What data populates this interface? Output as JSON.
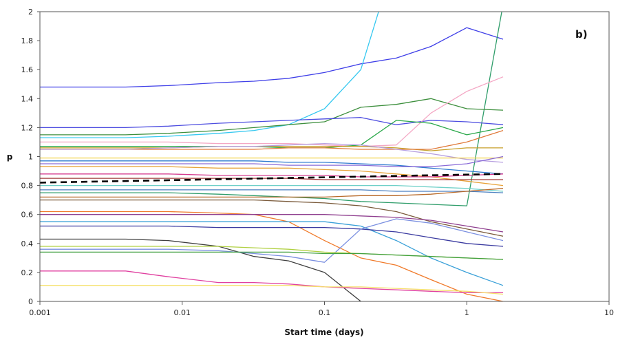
{
  "chart_data": {
    "type": "line",
    "title": "",
    "xlabel": "Start time (days)",
    "ylabel": "p",
    "panel_label": "b)",
    "x_scale": "log",
    "xlim": [
      0.001,
      10
    ],
    "ylim": [
      0,
      2
    ],
    "x_ticks": [
      "0.001",
      "0.01",
      "0.1",
      "1",
      "10"
    ],
    "y_ticks": [
      "0",
      "0.2",
      "0.4",
      "0.6",
      "0.8",
      "1",
      "1.2",
      "1.4",
      "1.6",
      "1.8",
      "2"
    ],
    "grid": false,
    "legend": "none",
    "x": [
      0.001,
      0.002,
      0.004,
      0.008,
      0.018,
      0.032,
      0.056,
      0.1,
      0.18,
      0.32,
      0.56,
      1.0,
      1.8
    ],
    "series": [
      {
        "color": "#3f3fe8",
        "values": [
          1.48,
          1.48,
          1.48,
          1.49,
          1.51,
          1.52,
          1.54,
          1.58,
          1.64,
          1.68,
          1.76,
          1.89,
          1.81
        ]
      },
      {
        "color": "#35c8f0",
        "values": [
          1.13,
          1.13,
          1.13,
          1.14,
          1.16,
          1.18,
          1.22,
          1.33,
          1.6,
          2.4,
          null,
          null,
          null
        ]
      },
      {
        "color": "#2f9d6a",
        "values": [
          0.75,
          0.75,
          0.75,
          0.75,
          0.74,
          0.73,
          0.72,
          0.71,
          0.69,
          0.68,
          0.67,
          0.66,
          2.05
        ]
      },
      {
        "color": "#3d8f3d",
        "values": [
          1.15,
          1.15,
          1.15,
          1.16,
          1.18,
          1.2,
          1.22,
          1.24,
          1.34,
          1.36,
          1.4,
          1.33,
          1.32
        ]
      },
      {
        "color": "#4d4de0",
        "values": [
          1.2,
          1.2,
          1.2,
          1.21,
          1.23,
          1.24,
          1.25,
          1.26,
          1.27,
          1.22,
          1.25,
          1.24,
          1.22
        ]
      },
      {
        "color": "#f4a7c4",
        "values": [
          1.1,
          1.1,
          1.1,
          1.1,
          1.09,
          1.09,
          1.09,
          1.08,
          1.07,
          1.08,
          1.3,
          1.45,
          1.55
        ]
      },
      {
        "color": "#2aa84a",
        "values": [
          1.07,
          1.07,
          1.07,
          1.07,
          1.07,
          1.07,
          1.06,
          1.06,
          1.08,
          1.25,
          1.23,
          1.15,
          1.2
        ]
      },
      {
        "color": "#c79f2a",
        "values": [
          1.06,
          1.06,
          1.06,
          1.06,
          1.07,
          1.07,
          1.07,
          1.07,
          1.07,
          1.06,
          1.04,
          1.06,
          1.06
        ]
      },
      {
        "color": "#e07a3a",
        "values": [
          1.05,
          1.05,
          1.05,
          1.05,
          1.05,
          1.05,
          1.06,
          1.06,
          1.05,
          1.05,
          1.05,
          1.1,
          1.18
        ]
      },
      {
        "color": "#b8a0e0",
        "values": [
          1.05,
          1.05,
          1.05,
          1.06,
          1.07,
          1.07,
          1.08,
          1.09,
          1.08,
          1.05,
          1.02,
          0.98,
          0.96
        ]
      },
      {
        "color": "#f2d24a",
        "values": [
          0.99,
          0.99,
          0.99,
          0.99,
          0.99,
          0.99,
          0.99,
          0.99,
          0.99,
          0.99,
          0.99,
          0.99,
          0.99
        ]
      },
      {
        "color": "#2f7bd0",
        "values": [
          0.97,
          0.97,
          0.97,
          0.97,
          0.97,
          0.97,
          0.96,
          0.96,
          0.95,
          0.94,
          0.92,
          0.9,
          0.88
        ]
      },
      {
        "color": "#8a6bd8",
        "values": [
          0.95,
          0.95,
          0.95,
          0.95,
          0.95,
          0.95,
          0.94,
          0.94,
          0.94,
          0.93,
          0.93,
          0.95,
          1.0
        ]
      },
      {
        "color": "#e8a33a",
        "values": [
          0.93,
          0.93,
          0.93,
          0.93,
          0.92,
          0.92,
          0.92,
          0.91,
          0.9,
          0.88,
          0.86,
          0.83,
          0.8
        ]
      },
      {
        "color": "#d43b8f",
        "values": [
          0.88,
          0.88,
          0.88,
          0.88,
          0.87,
          0.87,
          0.87,
          0.87,
          0.86,
          0.86,
          0.86,
          0.87,
          0.88
        ]
      },
      {
        "color": "#a23b3b",
        "values": [
          0.85,
          0.85,
          0.85,
          0.85,
          0.85,
          0.85,
          0.85,
          0.84,
          0.84,
          0.84,
          0.84,
          0.84,
          0.84
        ]
      },
      {
        "color": "#6fd0c8",
        "values": [
          0.8,
          0.8,
          0.8,
          0.8,
          0.8,
          0.8,
          0.8,
          0.8,
          0.8,
          0.8,
          0.79,
          0.78,
          0.76
        ]
      },
      {
        "color": "#4a7fc0",
        "values": [
          0.77,
          0.77,
          0.77,
          0.77,
          0.77,
          0.77,
          0.77,
          0.77,
          0.77,
          0.76,
          0.76,
          0.76,
          0.75
        ]
      },
      {
        "color": "#b86a2a",
        "values": [
          0.72,
          0.72,
          0.72,
          0.72,
          0.72,
          0.72,
          0.72,
          0.72,
          0.73,
          0.73,
          0.74,
          0.76,
          0.78
        ]
      },
      {
        "color": "#7a5a3a",
        "values": [
          0.7,
          0.7,
          0.7,
          0.7,
          0.7,
          0.7,
          0.69,
          0.68,
          0.66,
          0.62,
          0.55,
          0.5,
          0.45
        ]
      },
      {
        "color": "#f07a2a",
        "values": [
          0.62,
          0.62,
          0.62,
          0.62,
          0.61,
          0.6,
          0.55,
          0.42,
          0.3,
          0.25,
          0.15,
          0.05,
          0.0
        ]
      },
      {
        "color": "#8f3f8f",
        "values": [
          0.6,
          0.6,
          0.6,
          0.6,
          0.6,
          0.6,
          0.6,
          0.6,
          0.59,
          0.58,
          0.56,
          0.52,
          0.48
        ]
      },
      {
        "color": "#3aa0d8",
        "values": [
          0.55,
          0.55,
          0.55,
          0.55,
          0.55,
          0.55,
          0.55,
          0.55,
          0.52,
          0.42,
          0.3,
          0.2,
          0.11
        ]
      },
      {
        "color": "#3a3aa0",
        "values": [
          0.52,
          0.52,
          0.52,
          0.52,
          0.51,
          0.51,
          0.51,
          0.51,
          0.5,
          0.48,
          0.44,
          0.4,
          0.38
        ]
      },
      {
        "color": "#3f3f3f",
        "values": [
          0.43,
          0.43,
          0.43,
          0.42,
          0.38,
          0.31,
          0.28,
          0.2,
          0.0,
          null,
          null,
          null,
          null
        ]
      },
      {
        "color": "#7a8fe0",
        "values": [
          0.36,
          0.36,
          0.36,
          0.36,
          0.35,
          0.33,
          0.31,
          0.27,
          0.5,
          0.57,
          0.54,
          0.48,
          0.42
        ]
      },
      {
        "color": "#b0d040",
        "values": [
          0.38,
          0.38,
          0.38,
          0.38,
          0.38,
          0.37,
          0.36,
          0.34,
          0.33,
          0.32,
          0.31,
          0.3,
          0.29
        ]
      },
      {
        "color": "#3f9f3f",
        "values": [
          0.34,
          0.34,
          0.34,
          0.34,
          0.34,
          0.34,
          0.34,
          0.33,
          0.33,
          0.32,
          0.31,
          0.3,
          0.29
        ]
      },
      {
        "color": "#e040a0",
        "values": [
          0.21,
          0.21,
          0.21,
          0.17,
          0.13,
          0.13,
          0.12,
          0.1,
          0.09,
          0.08,
          0.07,
          0.06,
          0.06
        ]
      },
      {
        "color": "#f6e06a",
        "values": [
          0.11,
          0.11,
          0.11,
          0.11,
          0.11,
          0.11,
          0.11,
          0.1,
          0.1,
          0.09,
          0.08,
          0.07,
          0.05
        ]
      }
    ],
    "reference_line": {
      "style": "dashed",
      "color": "#000000",
      "x": [
        0.001,
        1.8
      ],
      "values": [
        0.82,
        0.88
      ]
    }
  }
}
